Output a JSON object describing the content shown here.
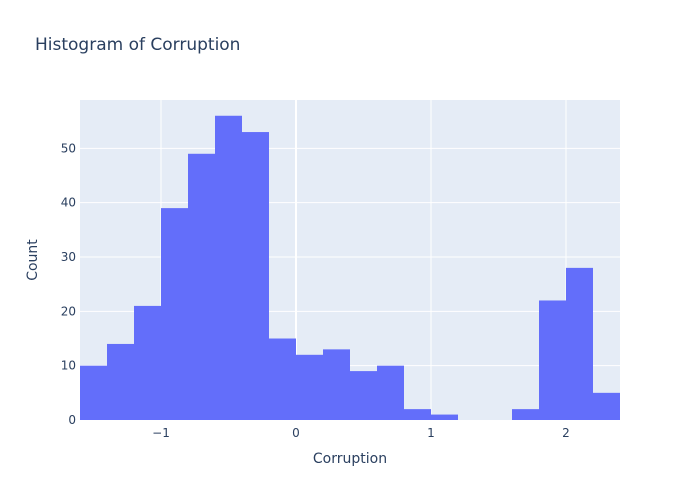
{
  "chart_data": {
    "type": "bar",
    "title": "Histogram of Corruption",
    "xlabel": "Corruption",
    "ylabel": "Count",
    "bin_width": 0.2,
    "bins": [
      {
        "start": -1.6,
        "end": -1.4,
        "count": 10
      },
      {
        "start": -1.4,
        "end": -1.2,
        "count": 14
      },
      {
        "start": -1.2,
        "end": -1.0,
        "count": 21
      },
      {
        "start": -1.0,
        "end": -0.8,
        "count": 39
      },
      {
        "start": -0.8,
        "end": -0.6,
        "count": 49
      },
      {
        "start": -0.6,
        "end": -0.4,
        "count": 56
      },
      {
        "start": -0.4,
        "end": -0.2,
        "count": 53
      },
      {
        "start": -0.2,
        "end": 0.0,
        "count": 15
      },
      {
        "start": 0.0,
        "end": 0.2,
        "count": 12
      },
      {
        "start": 0.2,
        "end": 0.4,
        "count": 13
      },
      {
        "start": 0.4,
        "end": 0.6,
        "count": 9
      },
      {
        "start": 0.6,
        "end": 0.8,
        "count": 10
      },
      {
        "start": 0.8,
        "end": 1.0,
        "count": 2
      },
      {
        "start": 1.0,
        "end": 1.2,
        "count": 1
      },
      {
        "start": 1.2,
        "end": 1.4,
        "count": 0
      },
      {
        "start": 1.4,
        "end": 1.6,
        "count": 0
      },
      {
        "start": 1.6,
        "end": 1.8,
        "count": 2
      },
      {
        "start": 1.8,
        "end": 2.0,
        "count": 22
      },
      {
        "start": 2.0,
        "end": 2.2,
        "count": 28
      },
      {
        "start": 2.2,
        "end": 2.4,
        "count": 5
      }
    ],
    "xlim": [
      -1.6,
      2.4
    ],
    "ylim": [
      0,
      58.9
    ],
    "x_ticks": [
      {
        "value": -1,
        "label": "−1"
      },
      {
        "value": 0,
        "label": "0"
      },
      {
        "value": 1,
        "label": "1"
      },
      {
        "value": 2,
        "label": "2"
      }
    ],
    "y_ticks": [
      {
        "value": 0,
        "label": "0"
      },
      {
        "value": 10,
        "label": "10"
      },
      {
        "value": 20,
        "label": "20"
      },
      {
        "value": 30,
        "label": "30"
      },
      {
        "value": 40,
        "label": "40"
      },
      {
        "value": 50,
        "label": "50"
      }
    ],
    "grid": true,
    "colors": {
      "bar": "#636efa",
      "plot_background": "#e5ecf6",
      "grid": "#ffffff",
      "text": "#2a3f5f"
    }
  }
}
